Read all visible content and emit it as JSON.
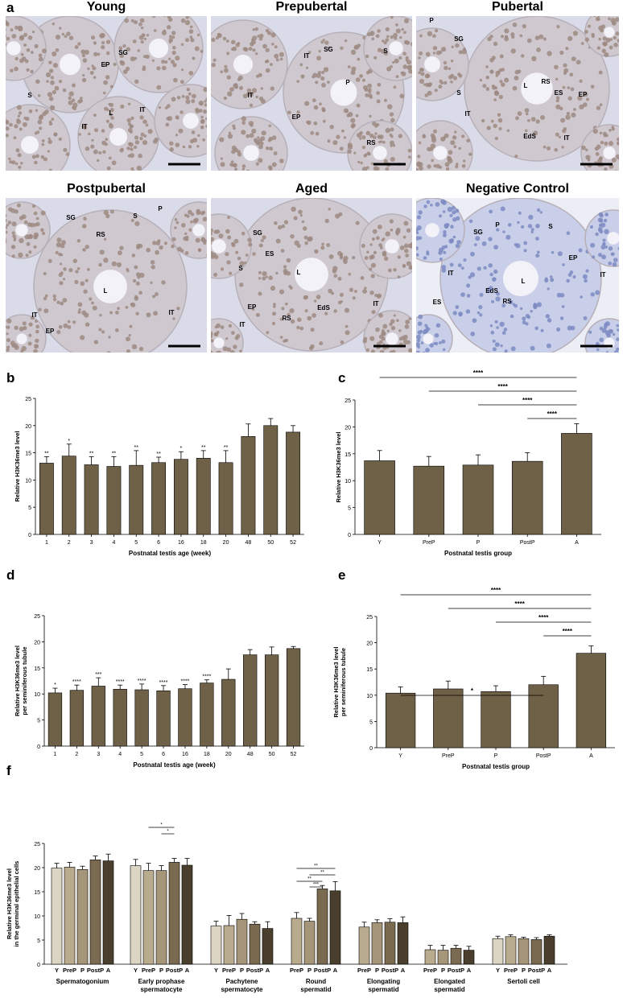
{
  "panel_letters": {
    "a": "a",
    "b": "b",
    "c": "c",
    "d": "d",
    "e": "e",
    "f": "f"
  },
  "micrographs": [
    {
      "title": "Young",
      "labels": [
        {
          "t": "S"
        },
        {
          "t": "SG"
        },
        {
          "t": "EP"
        },
        {
          "t": "L"
        },
        {
          "t": "IT"
        },
        {
          "t": "IT"
        }
      ]
    },
    {
      "title": "Prepubertal",
      "labels": [
        {
          "t": "SG"
        },
        {
          "t": "S"
        },
        {
          "t": "IT"
        },
        {
          "t": "P"
        },
        {
          "t": "IT"
        },
        {
          "t": "EP"
        },
        {
          "t": "RS"
        }
      ]
    },
    {
      "title": "Pubertal",
      "labels": [
        {
          "t": "P"
        },
        {
          "t": "SG"
        },
        {
          "t": "RS"
        },
        {
          "t": "S"
        },
        {
          "t": "L"
        },
        {
          "t": "ES"
        },
        {
          "t": "EP"
        },
        {
          "t": "IT"
        },
        {
          "t": "EdS"
        },
        {
          "t": "IT"
        }
      ]
    },
    {
      "title": "Postpubertal",
      "labels": [
        {
          "t": "SG"
        },
        {
          "t": "S"
        },
        {
          "t": "P"
        },
        {
          "t": "RS"
        },
        {
          "t": "L"
        },
        {
          "t": "IT"
        },
        {
          "t": "IT"
        },
        {
          "t": "EP"
        }
      ]
    },
    {
      "title": "Aged",
      "labels": [
        {
          "t": "SG"
        },
        {
          "t": "ES"
        },
        {
          "t": "S"
        },
        {
          "t": "L"
        },
        {
          "t": "EP"
        },
        {
          "t": "RS"
        },
        {
          "t": "EdS"
        },
        {
          "t": "IT"
        },
        {
          "t": "IT"
        }
      ]
    },
    {
      "title": "Negative Control",
      "labels": [
        {
          "t": "SG"
        },
        {
          "t": "P"
        },
        {
          "t": "S"
        },
        {
          "t": "EP"
        },
        {
          "t": "IT"
        },
        {
          "t": "IT"
        },
        {
          "t": "L"
        },
        {
          "t": "EdS"
        },
        {
          "t": "ES"
        },
        {
          "t": "RS"
        }
      ]
    }
  ],
  "colors": {
    "bar": "#6f6147",
    "micro_bg": "#d9dbe9",
    "cell": "#9d8a82",
    "cell_nc": "#7d8bc2",
    "lumen": "#f2f2f8",
    "scale": "#000000"
  },
  "chart_data": [
    {
      "panel": "b",
      "type": "bar",
      "categories": [
        "1",
        "2",
        "3",
        "4",
        "5",
        "6",
        "16",
        "18",
        "20",
        "48",
        "50",
        "52"
      ],
      "values": [
        13.1,
        14.4,
        12.8,
        12.5,
        12.7,
        13.2,
        13.8,
        14.0,
        13.2,
        18.0,
        20.0,
        18.8
      ],
      "errors": [
        1.2,
        2.2,
        1.5,
        1.8,
        2.7,
        1.0,
        1.4,
        1.4,
        2.2,
        2.3,
        1.3,
        1.2
      ],
      "stars": [
        "**",
        "*",
        "**",
        "**",
        "**",
        "**",
        "*",
        "**",
        "**",
        "",
        "",
        ""
      ],
      "ylabel": "Relative H3K36me3 level",
      "xlabel": "Postnatal testis age (week)",
      "ylim": [
        0,
        25
      ],
      "yticks": [
        0,
        5,
        10,
        15,
        20,
        25
      ]
    },
    {
      "panel": "c",
      "type": "bar",
      "categories": [
        "Y",
        "PreP",
        "P",
        "PostP",
        "A"
      ],
      "values": [
        13.7,
        12.7,
        12.9,
        13.6,
        18.8
      ],
      "errors": [
        1.9,
        1.8,
        1.9,
        1.6,
        1.8
      ],
      "comparisons": [
        {
          "from": 0,
          "to": 4,
          "label": "****"
        },
        {
          "from": 1,
          "to": 4,
          "label": "****"
        },
        {
          "from": 2,
          "to": 4,
          "label": "****"
        },
        {
          "from": 3,
          "to": 4,
          "label": "****"
        }
      ],
      "ylabel": "Relative H3K36me3 level",
      "xlabel": "Postnatal testis group",
      "ylim": [
        0,
        25
      ],
      "yticks": [
        0,
        5,
        10,
        15,
        20,
        25
      ]
    },
    {
      "panel": "d",
      "type": "bar",
      "categories": [
        "1",
        "2",
        "3",
        "4",
        "5",
        "6",
        "16",
        "18",
        "20",
        "48",
        "50",
        "52"
      ],
      "values": [
        10.2,
        10.7,
        11.5,
        10.9,
        10.8,
        10.6,
        11.0,
        12.1,
        12.8,
        17.5,
        17.5,
        18.7
      ],
      "errors": [
        0.9,
        1.0,
        1.6,
        0.8,
        1.1,
        1.0,
        0.8,
        0.6,
        2.0,
        1.0,
        1.5,
        0.4
      ],
      "stars": [
        "*",
        "****",
        "***",
        "****",
        "****",
        "****",
        "****",
        "****",
        "",
        "",
        "",
        ""
      ],
      "ylabel": [
        "Relative H3K36me3 level",
        "per seminiferous tubule"
      ],
      "xlabel": "Postnatal testis age (week)",
      "ylim": [
        0,
        25
      ],
      "yticks": [
        0,
        5,
        10,
        15,
        20,
        25
      ]
    },
    {
      "panel": "e",
      "type": "bar",
      "categories": [
        "Y",
        "PreP",
        "P",
        "PostP",
        "A"
      ],
      "values": [
        10.4,
        11.2,
        10.7,
        12.0,
        18.0
      ],
      "errors": [
        1.2,
        1.5,
        1.1,
        1.6,
        1.4
      ],
      "comparisons": [
        {
          "from": 0,
          "to": 4,
          "label": "****"
        },
        {
          "from": 1,
          "to": 4,
          "label": "****"
        },
        {
          "from": 2,
          "to": 4,
          "label": "****"
        },
        {
          "from": 3,
          "to": 4,
          "label": "****"
        },
        {
          "from": 0,
          "to": 3,
          "label": "*"
        }
      ],
      "ylabel": [
        "Relative H3K36me3 level",
        "per seminiferous tubule"
      ],
      "xlabel": "Postnatal testis group",
      "ylim": [
        0,
        25
      ],
      "yticks": [
        0,
        5,
        10,
        15,
        20,
        25
      ]
    },
    {
      "panel": "f",
      "type": "bar",
      "ylabel": [
        "Relative H3K36me3 level",
        "in the germinal epithelial cells"
      ],
      "ylim": [
        0,
        25
      ],
      "yticks": [
        0,
        5,
        10,
        15,
        20,
        25
      ],
      "series_colors": {
        "Y": "#ddd5c3",
        "PreP": "#b9ac8e",
        "P": "#a59679",
        "PostP": "#7a6b50",
        "A": "#4a3f2c"
      },
      "groups": [
        {
          "name": [
            "Spermatogonium"
          ],
          "bars": [
            {
              "s": "Y",
              "v": 19.9,
              "e": 1.0
            },
            {
              "s": "PreP",
              "v": 20.1,
              "e": 1.0
            },
            {
              "s": "P",
              "v": 19.6,
              "e": 0.7
            },
            {
              "s": "PostP",
              "v": 21.6,
              "e": 0.8
            },
            {
              "s": "A",
              "v": 21.4,
              "e": 1.4
            }
          ],
          "comparisons": []
        },
        {
          "name": [
            "Early prophase",
            "spermatocyte"
          ],
          "bars": [
            {
              "s": "Y",
              "v": 20.4,
              "e": 1.3
            },
            {
              "s": "PreP",
              "v": 19.4,
              "e": 1.5
            },
            {
              "s": "P",
              "v": 19.4,
              "e": 1.0
            },
            {
              "s": "PostP",
              "v": 21.1,
              "e": 0.8
            },
            {
              "s": "A",
              "v": 20.5,
              "e": 1.4
            }
          ],
          "comparisons": [
            {
              "from": 2,
              "to": 3,
              "label": "*"
            },
            {
              "from": 1,
              "to": 3,
              "label": "*"
            }
          ]
        },
        {
          "name": [
            "Pachytene",
            "spermatocyte"
          ],
          "bars": [
            {
              "s": "Y",
              "v": 7.9,
              "e": 1.0
            },
            {
              "s": "PreP",
              "v": 8.0,
              "e": 2.1
            },
            {
              "s": "P",
              "v": 9.3,
              "e": 1.2
            },
            {
              "s": "PostP",
              "v": 8.3,
              "e": 0.5
            },
            {
              "s": "A",
              "v": 7.4,
              "e": 1.4
            }
          ],
          "comparisons": []
        },
        {
          "name": [
            "Round",
            "spermatid"
          ],
          "bars": [
            {
              "s": "PreP",
              "v": 9.5,
              "e": 1.2
            },
            {
              "s": "P",
              "v": 8.9,
              "e": 0.6
            },
            {
              "s": "PostP",
              "v": 15.6,
              "e": 0.7
            },
            {
              "s": "A",
              "v": 15.2,
              "e": 1.9
            }
          ],
          "comparisons": [
            {
              "from": 1,
              "to": 2,
              "label": "***"
            },
            {
              "from": 0,
              "to": 2,
              "label": "**"
            },
            {
              "from": 1,
              "to": 3,
              "label": "**"
            },
            {
              "from": 0,
              "to": 3,
              "label": "**"
            }
          ]
        },
        {
          "name": [
            "Elongating",
            "spermatid"
          ],
          "bars": [
            {
              "s": "PreP",
              "v": 7.7,
              "e": 1.0
            },
            {
              "s": "P",
              "v": 8.6,
              "e": 0.6
            },
            {
              "s": "PostP",
              "v": 8.7,
              "e": 0.7
            },
            {
              "s": "A",
              "v": 8.6,
              "e": 1.2
            }
          ],
          "comparisons": []
        },
        {
          "name": [
            "Elongated",
            "spermatid"
          ],
          "bars": [
            {
              "s": "PreP",
              "v": 3.0,
              "e": 0.9
            },
            {
              "s": "P",
              "v": 2.9,
              "e": 1.0
            },
            {
              "s": "PostP",
              "v": 3.3,
              "e": 0.6
            },
            {
              "s": "A",
              "v": 2.9,
              "e": 0.8
            }
          ],
          "comparisons": []
        },
        {
          "name": [
            "Sertoli cell"
          ],
          "bars": [
            {
              "s": "Y",
              "v": 5.3,
              "e": 0.5
            },
            {
              "s": "PreP",
              "v": 5.7,
              "e": 0.4
            },
            {
              "s": "P",
              "v": 5.3,
              "e": 0.3
            },
            {
              "s": "PostP",
              "v": 5.1,
              "e": 0.4
            },
            {
              "s": "A",
              "v": 5.8,
              "e": 0.3
            }
          ],
          "comparisons": []
        }
      ]
    }
  ]
}
